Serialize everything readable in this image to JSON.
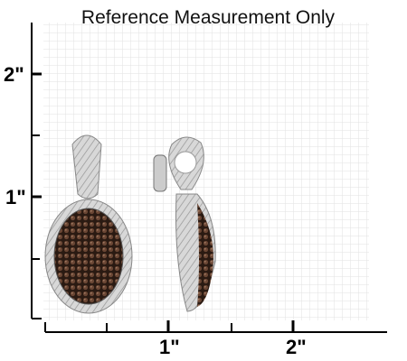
{
  "header": {
    "title": "Reference Measurement Only"
  },
  "ruler": {
    "vertical_labels": [
      "2\"",
      "1\""
    ],
    "horizontal_labels": [
      "1\"",
      "2\""
    ]
  }
}
